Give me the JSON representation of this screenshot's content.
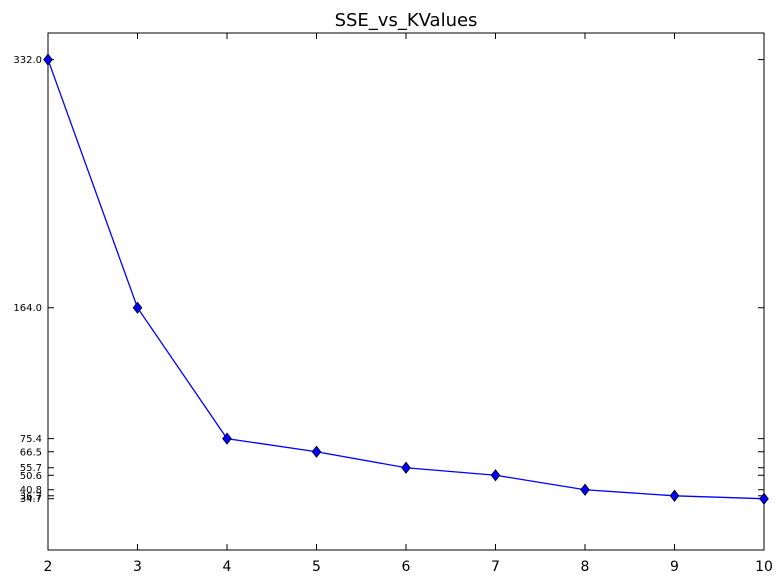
{
  "chart_data": {
    "type": "line",
    "title": "SSE_vs_KValues",
    "xlabel": "",
    "ylabel": "",
    "x": [
      2,
      3,
      4,
      5,
      6,
      7,
      8,
      9,
      10
    ],
    "series": [
      {
        "values": [
          332.0,
          164.0,
          75.4,
          66.5,
          55.7,
          50.6,
          40.8,
          36.7,
          34.7
        ],
        "color": "#0000ff",
        "marker": "diamond"
      }
    ],
    "x_ticks": [
      "2",
      "3",
      "4",
      "5",
      "6",
      "7",
      "8",
      "9",
      "10"
    ],
    "y_ticks": [
      {
        "value": 332.0,
        "label": "332.0"
      },
      {
        "value": 164.0,
        "label": "164.0"
      },
      {
        "value": 75.4,
        "label": "75.4"
      },
      {
        "value": 66.5,
        "label": "66.5"
      },
      {
        "value": 55.7,
        "label": "55.7"
      },
      {
        "value": 50.6,
        "label": "50.6"
      },
      {
        "value": 40.8,
        "label": "40.8"
      },
      {
        "value": 36.7,
        "label": "36.7"
      },
      {
        "value": 34.7,
        "label": "34.7"
      }
    ],
    "xlim": [
      2,
      10
    ],
    "ylim": [
      0,
      350
    ],
    "grid": false,
    "legend": false
  }
}
